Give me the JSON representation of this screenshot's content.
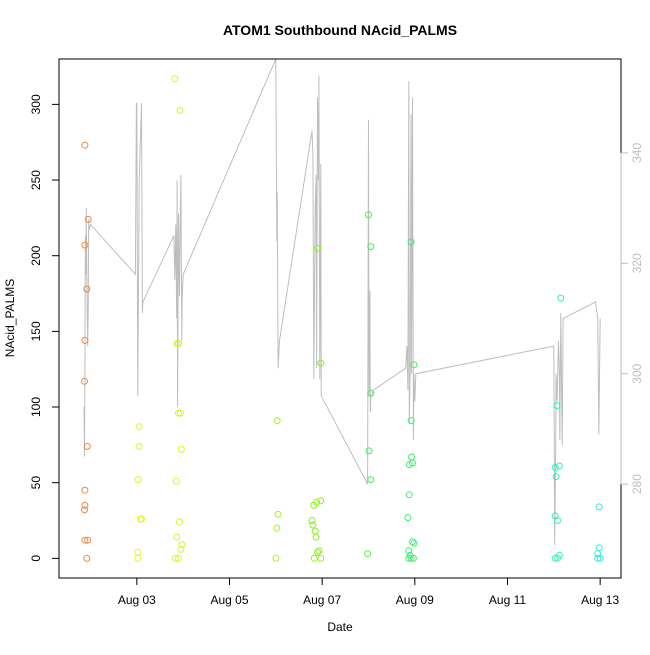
{
  "chart_data": {
    "type": "scatter",
    "title": "ATOM1 Southbound NAcid_PALMS",
    "xlabel": "Date",
    "ylabel": "NAcid_PALMS",
    "x_ticks": [
      {
        "label": "Aug 03",
        "x": 3.0
      },
      {
        "label": "Aug 05",
        "x": 5.0
      },
      {
        "label": "Aug 07",
        "x": 7.0
      },
      {
        "label": "Aug 09",
        "x": 9.0
      },
      {
        "label": "Aug 11",
        "x": 11.0
      },
      {
        "label": "Aug 13",
        "x": 13.0
      }
    ],
    "xlim": [
      1.32,
      13.45
    ],
    "ylim": [
      -13,
      330
    ],
    "y_ticks": [
      0,
      50,
      100,
      150,
      200,
      250,
      300
    ],
    "y2_ticks": [
      280,
      300,
      320,
      340
    ],
    "y2lim": [
      263,
      357
    ],
    "y2_color": "#bebebe",
    "grid": false,
    "points": [
      {
        "x": 1.88,
        "y": 273,
        "color": "#f0883a"
      },
      {
        "x": 1.88,
        "y": 207,
        "color": "#f0883a"
      },
      {
        "x": 1.88,
        "y": 144,
        "color": "#f0883a"
      },
      {
        "x": 1.87,
        "y": 117,
        "color": "#f0883a"
      },
      {
        "x": 1.93,
        "y": 74,
        "color": "#f0883a"
      },
      {
        "x": 1.88,
        "y": 45,
        "color": "#f0883a"
      },
      {
        "x": 1.88,
        "y": 35,
        "color": "#f0883a"
      },
      {
        "x": 1.87,
        "y": 32,
        "color": "#f0883a"
      },
      {
        "x": 1.88,
        "y": 12,
        "color": "#f0883a"
      },
      {
        "x": 1.94,
        "y": 12,
        "color": "#f0883a"
      },
      {
        "x": 1.92,
        "y": 0,
        "color": "#f0883a"
      },
      {
        "x": 1.95,
        "y": 224,
        "color": "#f0883a"
      },
      {
        "x": 1.92,
        "y": 178,
        "color": "#f0883a"
      },
      {
        "x": 3.05,
        "y": 87,
        "color": "#e5f51a"
      },
      {
        "x": 3.05,
        "y": 74,
        "color": "#e5f51a"
      },
      {
        "x": 3.03,
        "y": 52,
        "color": "#e5f51a"
      },
      {
        "x": 3.08,
        "y": 26,
        "color": "#e5f51a"
      },
      {
        "x": 3.1,
        "y": 26,
        "color": "#e5f51a"
      },
      {
        "x": 3.02,
        "y": 4,
        "color": "#e5f51a"
      },
      {
        "x": 3.02,
        "y": 0,
        "color": "#e5f51a"
      },
      {
        "x": 3.82,
        "y": 317,
        "color": "#d8f528"
      },
      {
        "x": 3.93,
        "y": 296,
        "color": "#d8f528"
      },
      {
        "x": 3.87,
        "y": 142,
        "color": "#d8f528"
      },
      {
        "x": 3.9,
        "y": 142,
        "color": "#d8f528"
      },
      {
        "x": 3.9,
        "y": 96,
        "color": "#d8f528"
      },
      {
        "x": 3.94,
        "y": 96,
        "color": "#d8f528"
      },
      {
        "x": 3.96,
        "y": 72,
        "color": "#d8f528"
      },
      {
        "x": 3.85,
        "y": 51,
        "color": "#d8f528"
      },
      {
        "x": 3.92,
        "y": 24,
        "color": "#d8f528"
      },
      {
        "x": 3.86,
        "y": 14,
        "color": "#d8f528"
      },
      {
        "x": 3.97,
        "y": 9,
        "color": "#d8f528"
      },
      {
        "x": 3.95,
        "y": 6,
        "color": "#d8f528"
      },
      {
        "x": 3.83,
        "y": 0,
        "color": "#d8f528"
      },
      {
        "x": 3.9,
        "y": 0,
        "color": "#d8f528"
      },
      {
        "x": 6.03,
        "y": 91,
        "color": "#a6f520"
      },
      {
        "x": 6.05,
        "y": 29,
        "color": "#a6f520"
      },
      {
        "x": 6.02,
        "y": 20,
        "color": "#a6f520"
      },
      {
        "x": 6.0,
        "y": 0,
        "color": "#a6f520"
      },
      {
        "x": 6.9,
        "y": 205,
        "color": "#8ef020"
      },
      {
        "x": 6.97,
        "y": 129,
        "color": "#8ef020"
      },
      {
        "x": 6.82,
        "y": 35,
        "color": "#8ef020"
      },
      {
        "x": 6.88,
        "y": 37,
        "color": "#8ef020"
      },
      {
        "x": 6.97,
        "y": 38,
        "color": "#8ef020"
      },
      {
        "x": 6.78,
        "y": 25,
        "color": "#8ef020"
      },
      {
        "x": 6.8,
        "y": 22,
        "color": "#8ef020"
      },
      {
        "x": 6.85,
        "y": 18,
        "color": "#8ef020"
      },
      {
        "x": 6.87,
        "y": 14,
        "color": "#8ef020"
      },
      {
        "x": 6.93,
        "y": 5,
        "color": "#8ef020"
      },
      {
        "x": 6.9,
        "y": 4,
        "color": "#8ef020"
      },
      {
        "x": 6.83,
        "y": 0,
        "color": "#8ef020"
      },
      {
        "x": 6.97,
        "y": 0,
        "color": "#8ef020"
      },
      {
        "x": 8.0,
        "y": 227,
        "color": "#4df04a"
      },
      {
        "x": 8.05,
        "y": 206,
        "color": "#4df04a"
      },
      {
        "x": 8.05,
        "y": 109,
        "color": "#4df04a"
      },
      {
        "x": 8.01,
        "y": 71,
        "color": "#4df04a"
      },
      {
        "x": 8.05,
        "y": 52,
        "color": "#4df04a"
      },
      {
        "x": 7.98,
        "y": 3,
        "color": "#4df04a"
      },
      {
        "x": 8.92,
        "y": 209,
        "color": "#3ff070"
      },
      {
        "x": 8.98,
        "y": 128,
        "color": "#3ff070"
      },
      {
        "x": 8.92,
        "y": 91,
        "color": "#3ff070"
      },
      {
        "x": 8.93,
        "y": 67,
        "color": "#3ff070"
      },
      {
        "x": 8.88,
        "y": 62,
        "color": "#3ff070"
      },
      {
        "x": 8.95,
        "y": 63,
        "color": "#3ff070"
      },
      {
        "x": 8.88,
        "y": 42,
        "color": "#3ff070"
      },
      {
        "x": 8.85,
        "y": 27,
        "color": "#3ff070"
      },
      {
        "x": 8.95,
        "y": 11,
        "color": "#3ff070"
      },
      {
        "x": 8.98,
        "y": 10,
        "color": "#3ff070"
      },
      {
        "x": 8.87,
        "y": 5,
        "color": "#3ff070"
      },
      {
        "x": 8.9,
        "y": 2,
        "color": "#3ff070"
      },
      {
        "x": 8.92,
        "y": 0,
        "color": "#3ff070"
      },
      {
        "x": 8.97,
        "y": 0,
        "color": "#3ff070"
      },
      {
        "x": 8.87,
        "y": 0,
        "color": "#3ff070"
      },
      {
        "x": 12.07,
        "y": 101,
        "color": "#30f5b0"
      },
      {
        "x": 12.03,
        "y": 60,
        "color": "#30f5b0"
      },
      {
        "x": 12.12,
        "y": 61,
        "color": "#30f5b0"
      },
      {
        "x": 12.05,
        "y": 54,
        "color": "#30f5b0"
      },
      {
        "x": 12.03,
        "y": 28,
        "color": "#30f5b0"
      },
      {
        "x": 12.08,
        "y": 25,
        "color": "#30f5b0"
      },
      {
        "x": 12.15,
        "y": 172,
        "color": "#30f5b0"
      },
      {
        "x": 12.03,
        "y": 0,
        "color": "#30f5b0"
      },
      {
        "x": 12.08,
        "y": 0,
        "color": "#30f5b0"
      },
      {
        "x": 12.12,
        "y": 2,
        "color": "#30f5b0"
      },
      {
        "x": 12.98,
        "y": 34,
        "color": "#2ff0d8"
      },
      {
        "x": 12.98,
        "y": 7,
        "color": "#2ff0d8"
      },
      {
        "x": 12.95,
        "y": 3,
        "color": "#2ff0d8"
      },
      {
        "x": 12.95,
        "y": 0,
        "color": "#2ff0d8"
      },
      {
        "x": 13.0,
        "y": 0,
        "color": "#2ff0d8"
      }
    ],
    "line_series": {
      "color": "#bebebe",
      "axis": "right",
      "points": [
        [
          1.86,
          294
        ],
        [
          1.87,
          285
        ],
        [
          1.88,
          300
        ],
        [
          1.89,
          325
        ],
        [
          1.9,
          318
        ],
        [
          1.91,
          330
        ],
        [
          1.92,
          318
        ],
        [
          1.94,
          305
        ],
        [
          1.95,
          311
        ],
        [
          1.96,
          328
        ],
        [
          1.97,
          326
        ],
        [
          2.0,
          327
        ],
        [
          2.97,
          318
        ],
        [
          2.99,
          349
        ],
        [
          3.0,
          349
        ],
        [
          3.02,
          296
        ],
        [
          3.05,
          335
        ],
        [
          3.1,
          349
        ],
        [
          3.12,
          311
        ],
        [
          3.13,
          313
        ],
        [
          3.8,
          325
        ],
        [
          3.82,
          317
        ],
        [
          3.84,
          327
        ],
        [
          3.86,
          310
        ],
        [
          3.87,
          335
        ],
        [
          3.88,
          294
        ],
        [
          3.9,
          329
        ],
        [
          3.92,
          314
        ],
        [
          3.94,
          330
        ],
        [
          3.95,
          336
        ],
        [
          3.97,
          306
        ],
        [
          3.98,
          314
        ],
        [
          3.99,
          316
        ],
        [
          4.0,
          318
        ],
        [
          6.0,
          357
        ],
        [
          6.02,
          324
        ],
        [
          6.03,
          333
        ],
        [
          6.05,
          301
        ],
        [
          6.08,
          306
        ],
        [
          6.78,
          344
        ],
        [
          6.8,
          340
        ],
        [
          6.82,
          299
        ],
        [
          6.85,
          330
        ],
        [
          6.87,
          336
        ],
        [
          6.88,
          301
        ],
        [
          6.9,
          350
        ],
        [
          6.92,
          335
        ],
        [
          6.93,
          354
        ],
        [
          6.95,
          299
        ],
        [
          6.97,
          338
        ],
        [
          6.98,
          296
        ],
        [
          7.98,
          280
        ],
        [
          8.0,
          346
        ],
        [
          8.01,
          296
        ],
        [
          8.02,
          303
        ],
        [
          8.03,
          315
        ],
        [
          8.04,
          293
        ],
        [
          8.05,
          296
        ],
        [
          8.07,
          296
        ],
        [
          8.1,
          297
        ],
        [
          8.8,
          301
        ],
        [
          8.83,
          305
        ],
        [
          8.85,
          297
        ],
        [
          8.87,
          353
        ],
        [
          8.88,
          291
        ],
        [
          8.9,
          301
        ],
        [
          8.92,
          347
        ],
        [
          8.93,
          300
        ],
        [
          8.95,
          350
        ],
        [
          8.97,
          288
        ],
        [
          8.98,
          300
        ],
        [
          9.0,
          295
        ],
        [
          9.02,
          300
        ],
        [
          12.0,
          305
        ],
        [
          12.02,
          269
        ],
        [
          12.04,
          287
        ],
        [
          12.05,
          300
        ],
        [
          12.07,
          295
        ],
        [
          12.1,
          306
        ],
        [
          12.12,
          300
        ],
        [
          12.13,
          288
        ],
        [
          12.15,
          311
        ],
        [
          12.18,
          287
        ],
        [
          12.2,
          310
        ],
        [
          12.9,
          313
        ],
        [
          12.95,
          310
        ],
        [
          12.97,
          289
        ],
        [
          13.0,
          310
        ]
      ]
    }
  }
}
